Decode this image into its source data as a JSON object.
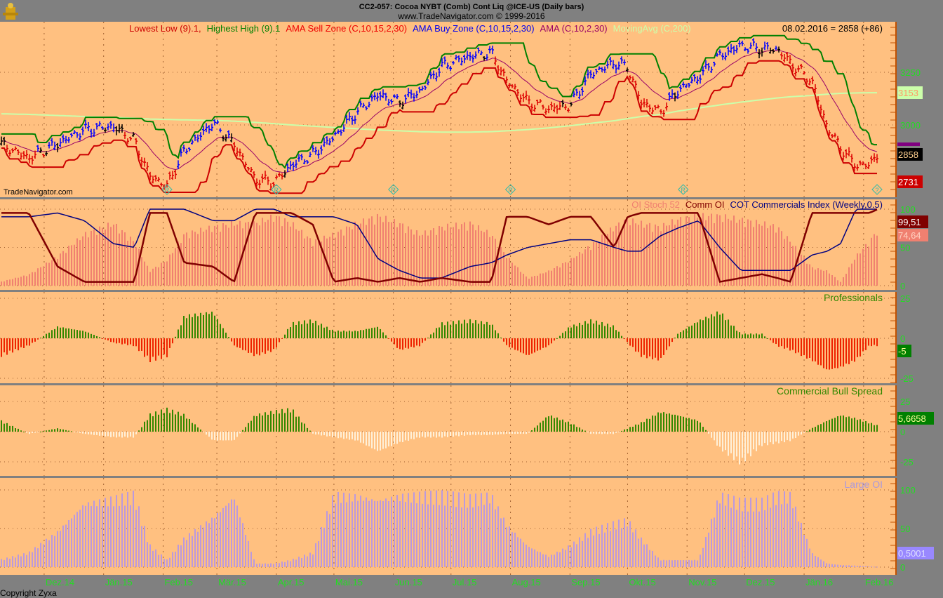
{
  "header": {
    "title": "CC2-057:  Cocoa NYBT (Comb) Cont Liq @ICE-US  (Daily bars)",
    "subtitle": "www.TradeNavigator.com © 1999-2016",
    "watermark": "TradeNavigator.com",
    "copyright": "Copyright Zyxa"
  },
  "colors": {
    "panel_bg": "#FFC080",
    "frame": "#808080",
    "axis_text": "#22DD22",
    "up_bar": "#0000FF",
    "down_bar": "#DD0000",
    "neutral_bar": "#000000",
    "highest_high": "#008000",
    "lowest_low": "#CC0000",
    "ama": "#990066",
    "moving_avg": "#CCFFAA",
    "oi_stoch": "#F08070",
    "comm_oi": "#800000",
    "cot_index": "#000080",
    "pos_hist": "#338800",
    "neg_hist": "#EE2200",
    "spread_neg": "#FFF0D8",
    "large_oi": "#BB99DD"
  },
  "chart_data": [
    {
      "type": "line",
      "panel": "price",
      "legend": [
        {
          "label": "Lowest Low (9).1,",
          "color": "#CC0000"
        },
        {
          "label": "Highest High (9).1",
          "color": "#008000"
        },
        {
          "label": "AMA Sell Zone (C,10,15,2,30)",
          "color": "#EE0000"
        },
        {
          "label": "AMA Buy Zone (C,10,15,2,30)",
          "color": "#0000EE"
        },
        {
          "label": "AMA (C,10,2,30)",
          "color": "#990066"
        },
        {
          "label": "MovingAvg (C,200)",
          "color": "#CCFFAA"
        }
      ],
      "last_value_text": "08.02.2016 = 2858 (+86)",
      "yticks": [
        "3250",
        "3000"
      ],
      "ylim": [
        2650,
        3480
      ],
      "value_boxes": [
        {
          "text": "3153",
          "bg": "#CCFFAA",
          "fg": "#FF9966",
          "value": 3153
        },
        {
          "text": "2858",
          "bg": "#000000",
          "fg": "#FFD090",
          "value": 2858
        },
        {
          "text": "2731",
          "bg": "#CC0000",
          "fg": "#FFFFFF",
          "value": 2731
        }
      ],
      "markers": [
        {
          "date": "2015-02-03",
          "label": "R"
        },
        {
          "date": "2015-04-01",
          "label": "R"
        },
        {
          "date": "2015-06-01",
          "label": "R"
        },
        {
          "date": "2015-08-01",
          "label": "R"
        },
        {
          "date": "2015-10-30",
          "label": "R"
        },
        {
          "date": "2016-02-08",
          "label": "?"
        }
      ],
      "dates": [
        "2014-11-08",
        "2014-11-23",
        "2014-12-08",
        "2014-12-22",
        "2015-01-06",
        "2015-01-17",
        "2015-01-25",
        "2015-02-03",
        "2015-02-12",
        "2015-02-27",
        "2015-03-10",
        "2015-03-21",
        "2015-03-31",
        "2015-04-09",
        "2015-04-20",
        "2015-05-01",
        "2015-05-13",
        "2015-05-24",
        "2015-06-04",
        "2015-06-15",
        "2015-06-26",
        "2015-07-11",
        "2015-07-22",
        "2015-07-30",
        "2015-08-10",
        "2015-08-21",
        "2015-09-01",
        "2015-09-12",
        "2015-09-24",
        "2015-10-01",
        "2015-10-08",
        "2015-10-18",
        "2015-10-27",
        "2015-11-07",
        "2015-11-18",
        "2015-11-29",
        "2015-12-10",
        "2015-12-18",
        "2015-12-25",
        "2016-01-05",
        "2016-01-13",
        "2016-01-20",
        "2016-01-28",
        "2016-02-04",
        "2016-02-08"
      ],
      "close": [
        2910,
        2843,
        2910,
        2977,
        2993,
        2927,
        2760,
        2710,
        2877,
        3010,
        2910,
        2743,
        2727,
        2810,
        2860,
        2943,
        3060,
        3143,
        3110,
        3160,
        3277,
        3327,
        3343,
        3210,
        3110,
        3077,
        3093,
        3243,
        3293,
        3277,
        3110,
        3060,
        3160,
        3227,
        3327,
        3377,
        3360,
        3360,
        3293,
        3210,
        2993,
        2893,
        2810,
        2810,
        2858
      ],
      "moving_avg_200": [
        3053,
        3050,
        3045,
        3040,
        3036,
        3032,
        3028,
        3026,
        3024,
        3022,
        3018,
        3012,
        3006,
        3000,
        2994,
        2988,
        2982,
        2976,
        2972,
        2968,
        2966,
        2966,
        2968,
        2972,
        2978,
        2986,
        2996,
        3008,
        3020,
        3030,
        3040,
        3050,
        3065,
        3080,
        3095,
        3108,
        3120,
        3128,
        3134,
        3140,
        3146,
        3150,
        3152,
        3153,
        3153
      ]
    },
    {
      "type": "bar+line",
      "panel": "cot",
      "legend": [
        {
          "label": "OI Stoch 52",
          "color": "#F08070"
        },
        {
          "label": "Comm OI",
          "color": "#800000"
        },
        {
          "label": "COT Commercials Index (Weekly,0.5)",
          "color": "#000080"
        }
      ],
      "yticks": [
        "100",
        "50",
        "0"
      ],
      "ylim": [
        0,
        100
      ],
      "value_boxes": [
        {
          "text": "99,51",
          "bg": "#800000",
          "fg": "#FFFFFF",
          "value": 99.51
        },
        {
          "text": "74,64",
          "bg": "#F08070",
          "fg": "#FFD0C0",
          "value": 74.64
        }
      ],
      "oi_stoch_52": [
        5,
        15,
        40,
        70,
        85,
        60,
        20,
        35,
        70,
        80,
        85,
        85,
        95,
        85,
        60,
        70,
        85,
        95,
        85,
        70,
        80,
        85,
        70,
        40,
        10,
        20,
        35,
        55,
        80,
        90,
        85,
        80,
        90,
        95,
        95,
        90,
        85,
        80,
        60,
        25,
        20,
        5,
        40,
        60,
        74.64
      ],
      "comm_oi": [
        95,
        95,
        25,
        5,
        5,
        5,
        95,
        95,
        30,
        25,
        5,
        95,
        95,
        95,
        80,
        5,
        10,
        5,
        10,
        5,
        10,
        5,
        5,
        90,
        90,
        80,
        90,
        90,
        50,
        90,
        95,
        95,
        95,
        95,
        5,
        10,
        15,
        10,
        5,
        95,
        95,
        95,
        95,
        95,
        99.51
      ],
      "cot_commercials_index": [
        90,
        90,
        95,
        85,
        55,
        50,
        100,
        100,
        100,
        85,
        85,
        100,
        100,
        90,
        90,
        90,
        80,
        35,
        20,
        10,
        10,
        25,
        30,
        40,
        50,
        55,
        60,
        60,
        50,
        45,
        45,
        65,
        75,
        85,
        50,
        20,
        20,
        20,
        20,
        40,
        45,
        55,
        100,
        100,
        100
      ]
    },
    {
      "type": "bar",
      "panel": "professionals",
      "title": "Professionals",
      "yticks": [
        "25",
        "0",
        "-25"
      ],
      "ylim": [
        -25,
        25
      ],
      "value_boxes": [
        {
          "text": "-5",
          "bg": "#008000",
          "fg": "#FFFF99",
          "value": -5
        }
      ],
      "values": [
        -12,
        -5,
        8,
        5,
        -3,
        -5,
        -15,
        -12,
        15,
        18,
        -5,
        -12,
        -8,
        10,
        12,
        5,
        5,
        8,
        -8,
        -5,
        10,
        12,
        10,
        -5,
        -12,
        -5,
        8,
        12,
        8,
        -3,
        -12,
        -15,
        3,
        12,
        18,
        3,
        3,
        -5,
        -8,
        -15,
        -22,
        -20,
        -15,
        -5,
        -5
      ]
    },
    {
      "type": "bar",
      "panel": "commercial-bull-spread",
      "title": "Commercial Bull Spread",
      "yticks": [
        "25",
        "0",
        "-25"
      ],
      "ylim": [
        -35,
        35
      ],
      "value_boxes": [
        {
          "text": "5,6658",
          "bg": "#008000",
          "fg": "#FFFF99",
          "value": 5.6658
        }
      ],
      "values": [
        10,
        -2,
        3,
        -2,
        -5,
        -5,
        15,
        20,
        15,
        -8,
        -8,
        15,
        18,
        20,
        -2,
        -5,
        -8,
        -18,
        -10,
        -5,
        -5,
        -3,
        -3,
        -2,
        -2,
        15,
        8,
        -2,
        -2,
        3,
        8,
        18,
        15,
        10,
        -15,
        -28,
        -12,
        -10,
        -8,
        3,
        10,
        15,
        12,
        8,
        5.6658
      ]
    },
    {
      "type": "bar",
      "panel": "large-oi",
      "title": "Large OI",
      "yticks": [
        "100",
        "50",
        "0"
      ],
      "ylim": [
        0,
        100
      ],
      "value_boxes": [
        {
          "text": "0,5001",
          "bg": "#9988FF",
          "fg": "#DDDDFF",
          "value": 0.5001
        }
      ],
      "values": [
        10,
        20,
        50,
        90,
        95,
        100,
        30,
        10,
        40,
        70,
        100,
        5,
        5,
        10,
        20,
        100,
        100,
        95,
        100,
        100,
        100,
        95,
        100,
        60,
        30,
        15,
        30,
        50,
        60,
        65,
        40,
        10,
        10,
        10,
        100,
        90,
        90,
        100,
        100,
        20,
        5,
        3,
        2,
        1,
        0.5001
      ]
    }
  ],
  "x_axis": {
    "months": [
      {
        "label": "Dez.14",
        "date": "2014-12-01"
      },
      {
        "label": "Jän.15",
        "date": "2015-01-01"
      },
      {
        "label": "Feb.15",
        "date": "2015-02-01"
      },
      {
        "label": "Mär.15",
        "date": "2015-03-01"
      },
      {
        "label": "Apr.15",
        "date": "2015-04-01"
      },
      {
        "label": "Mai.15",
        "date": "2015-05-01"
      },
      {
        "label": "Jun.15",
        "date": "2015-06-01"
      },
      {
        "label": "Jul.15",
        "date": "2015-07-01"
      },
      {
        "label": "Aug.15",
        "date": "2015-08-01"
      },
      {
        "label": "Sep.15",
        "date": "2015-09-01"
      },
      {
        "label": "Okt.15",
        "date": "2015-10-01"
      },
      {
        "label": "Nov.15",
        "date": "2015-11-01"
      },
      {
        "label": "Dez.15",
        "date": "2015-12-01"
      },
      {
        "label": "Jän.16",
        "date": "2016-01-01"
      },
      {
        "label": "Feb.16",
        "date": "2016-02-01"
      }
    ]
  }
}
